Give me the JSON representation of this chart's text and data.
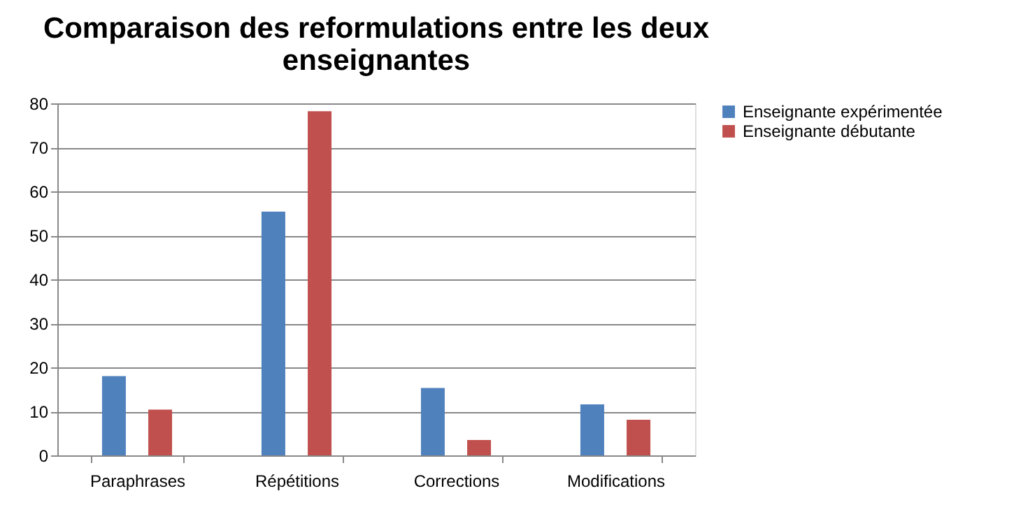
{
  "chart_data": {
    "type": "bar",
    "title": "Comparaison des reformulations entre les deux enseignantes",
    "categories": [
      "Paraphrases",
      "Répétitions",
      "Corrections",
      "Modifications"
    ],
    "series": [
      {
        "name": "Enseignante expérimentée",
        "color": "#4f81bd",
        "values": [
          18,
          55.4,
          15.3,
          11.6
        ]
      },
      {
        "name": "Enseignante débutante",
        "color": "#c0504d",
        "values": [
          10.4,
          78.2,
          3.5,
          8.1
        ]
      }
    ],
    "ylim": [
      0,
      80
    ],
    "yticks": [
      0,
      10,
      20,
      30,
      40,
      50,
      60,
      70,
      80
    ],
    "grid": "y",
    "legend": "right"
  }
}
